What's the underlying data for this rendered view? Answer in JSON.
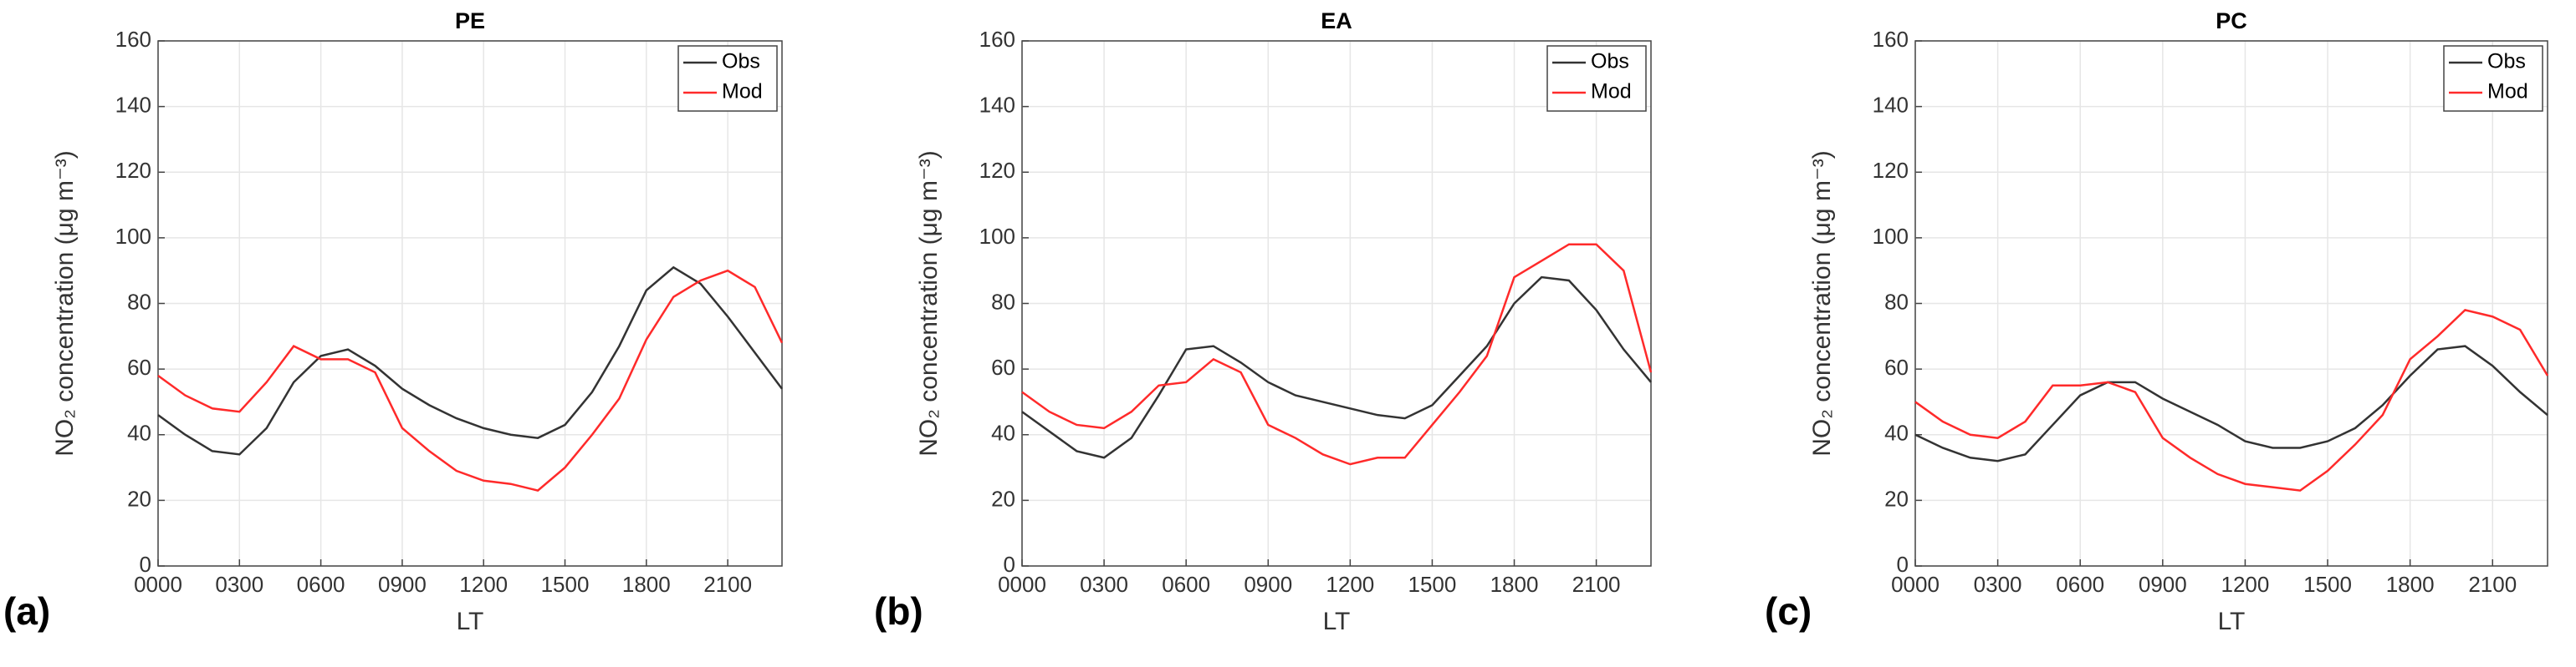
{
  "chart_data": [
    {
      "type": "line",
      "title": "PE",
      "panel_label": "(a)",
      "xlabel": "LT",
      "ylabel": "NO₂ concentration (μg m⁻³)",
      "x": [
        0,
        1,
        2,
        3,
        4,
        5,
        6,
        7,
        8,
        9,
        10,
        11,
        12,
        13,
        14,
        15,
        16,
        17,
        18,
        19,
        20,
        21,
        22,
        23
      ],
      "series": [
        {
          "name": "Obs",
          "color": "#333333",
          "values": [
            46,
            40,
            35,
            34,
            42,
            56,
            64,
            66,
            61,
            54,
            49,
            45,
            42,
            40,
            39,
            43,
            53,
            67,
            84,
            91,
            86,
            76,
            65,
            54
          ]
        },
        {
          "name": "Mod",
          "color": "#ff2a2a",
          "values": [
            58,
            52,
            48,
            47,
            56,
            67,
            63,
            63,
            59,
            42,
            35,
            29,
            26,
            25,
            23,
            30,
            40,
            51,
            69,
            82,
            87,
            90,
            85,
            68
          ]
        }
      ],
      "xlim": [
        0,
        23
      ],
      "xticks": [
        {
          "value": 0,
          "label": "0000"
        },
        {
          "value": 3,
          "label": "0300"
        },
        {
          "value": 6,
          "label": "0600"
        },
        {
          "value": 9,
          "label": "0900"
        },
        {
          "value": 12,
          "label": "1200"
        },
        {
          "value": 15,
          "label": "1500"
        },
        {
          "value": 18,
          "label": "1800"
        },
        {
          "value": 21,
          "label": "2100"
        }
      ],
      "ylim": [
        0,
        160
      ],
      "yticks": [
        0,
        20,
        40,
        60,
        80,
        100,
        120,
        140,
        160
      ],
      "grid": true,
      "legend": "top-right"
    },
    {
      "type": "line",
      "title": "EA",
      "panel_label": "(b)",
      "xlabel": "LT",
      "ylabel": "NO₂ concentration (μg m⁻³)",
      "x": [
        0,
        1,
        2,
        3,
        4,
        5,
        6,
        7,
        8,
        9,
        10,
        11,
        12,
        13,
        14,
        15,
        16,
        17,
        18,
        19,
        20,
        21,
        22,
        23
      ],
      "series": [
        {
          "name": "Obs",
          "color": "#333333",
          "values": [
            47,
            41,
            35,
            33,
            39,
            52,
            66,
            67,
            62,
            56,
            52,
            50,
            48,
            46,
            45,
            49,
            58,
            67,
            80,
            88,
            87,
            78,
            66,
            56
          ]
        },
        {
          "name": "Mod",
          "color": "#ff2a2a",
          "values": [
            53,
            47,
            43,
            42,
            47,
            55,
            56,
            63,
            59,
            43,
            39,
            34,
            31,
            33,
            33,
            43,
            53,
            64,
            88,
            93,
            98,
            98,
            90,
            59
          ]
        }
      ],
      "xlim": [
        0,
        23
      ],
      "xticks": [
        {
          "value": 0,
          "label": "0000"
        },
        {
          "value": 3,
          "label": "0300"
        },
        {
          "value": 6,
          "label": "0600"
        },
        {
          "value": 9,
          "label": "0900"
        },
        {
          "value": 12,
          "label": "1200"
        },
        {
          "value": 15,
          "label": "1500"
        },
        {
          "value": 18,
          "label": "1800"
        },
        {
          "value": 21,
          "label": "2100"
        }
      ],
      "ylim": [
        0,
        160
      ],
      "yticks": [
        0,
        20,
        40,
        60,
        80,
        100,
        120,
        140,
        160
      ],
      "grid": true,
      "legend": "top-right"
    },
    {
      "type": "line",
      "title": "PC",
      "panel_label": "(c)",
      "xlabel": "LT",
      "ylabel": "NO₂ concentration (μg m⁻³)",
      "x": [
        0,
        1,
        2,
        3,
        4,
        5,
        6,
        7,
        8,
        9,
        10,
        11,
        12,
        13,
        14,
        15,
        16,
        17,
        18,
        19,
        20,
        21,
        22,
        23
      ],
      "series": [
        {
          "name": "Obs",
          "color": "#333333",
          "values": [
            40,
            36,
            33,
            32,
            34,
            43,
            52,
            56,
            56,
            51,
            47,
            43,
            38,
            36,
            36,
            38,
            42,
            49,
            58,
            66,
            67,
            61,
            53,
            46
          ]
        },
        {
          "name": "Mod",
          "color": "#ff2a2a",
          "values": [
            50,
            44,
            40,
            39,
            44,
            55,
            55,
            56,
            53,
            39,
            33,
            28,
            25,
            24,
            23,
            29,
            37,
            46,
            63,
            70,
            78,
            76,
            72,
            58
          ]
        }
      ],
      "xlim": [
        0,
        23
      ],
      "xticks": [
        {
          "value": 0,
          "label": "0000"
        },
        {
          "value": 3,
          "label": "0300"
        },
        {
          "value": 6,
          "label": "0600"
        },
        {
          "value": 9,
          "label": "0900"
        },
        {
          "value": 12,
          "label": "1200"
        },
        {
          "value": 15,
          "label": "1500"
        },
        {
          "value": 18,
          "label": "1800"
        },
        {
          "value": 21,
          "label": "2100"
        }
      ],
      "ylim": [
        0,
        160
      ],
      "yticks": [
        0,
        20,
        40,
        60,
        80,
        100,
        120,
        140,
        160
      ],
      "grid": true,
      "legend": "top-right"
    }
  ]
}
